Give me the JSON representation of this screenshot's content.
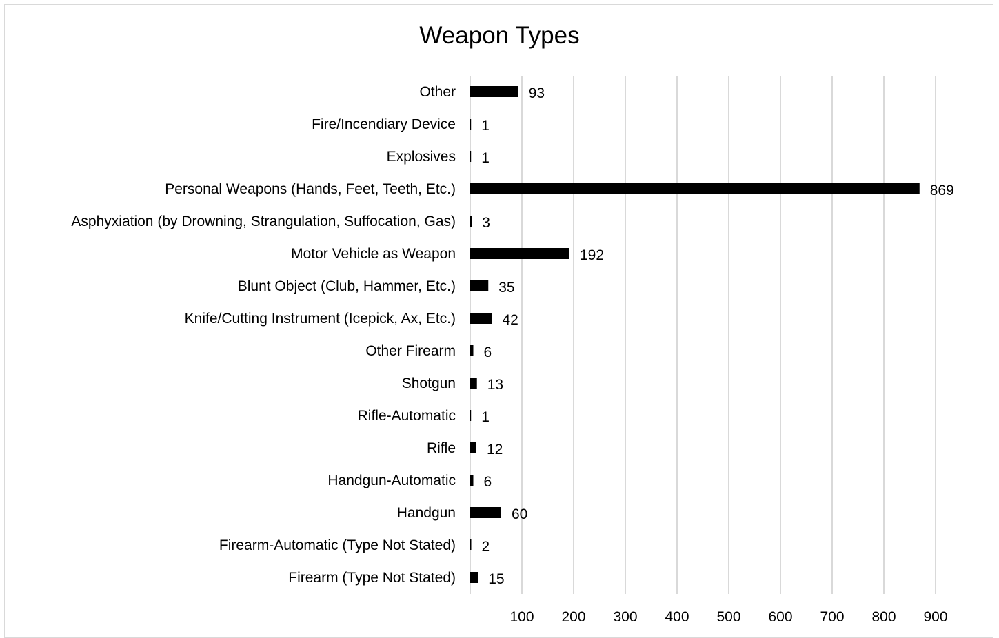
{
  "chart_data": {
    "type": "bar",
    "orientation": "horizontal",
    "title": "Weapon Types",
    "categories": [
      "Other",
      "Fire/Incendiary Device",
      "Explosives",
      "Personal Weapons (Hands, Feet, Teeth, Etc.)",
      "Asphyxiation (by Drowning, Strangulation, Suffocation, Gas)",
      "Motor Vehicle as Weapon",
      "Blunt Object (Club, Hammer, Etc.)",
      "Knife/Cutting Instrument (Icepick, Ax, Etc.)",
      "Other Firearm",
      "Shotgun",
      "Rifle-Automatic",
      "Rifle",
      "Handgun-Automatic",
      "Handgun",
      "Firearm-Automatic (Type Not Stated)",
      "Firearm (Type Not Stated)"
    ],
    "values": [
      93,
      1,
      1,
      869,
      3,
      192,
      35,
      42,
      6,
      13,
      1,
      12,
      6,
      60,
      2,
      15
    ],
    "x_ticks": [
      100,
      200,
      300,
      400,
      500,
      600,
      700,
      800,
      900
    ],
    "xlim": [
      0,
      900
    ],
    "grid": true,
    "legend": "none",
    "bar_color": "#000000",
    "grid_color": "#d9d9d9"
  }
}
